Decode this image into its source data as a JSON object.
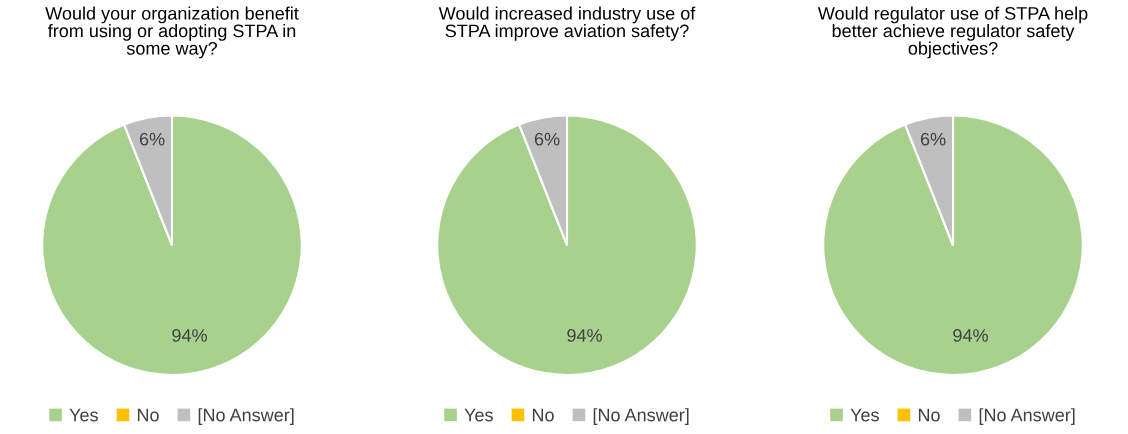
{
  "chart_data": [
    {
      "type": "pie",
      "title": "Would your organization benefit\nfrom using or adopting STPA in\nsome way?",
      "categories": [
        "Yes",
        "No",
        "[No Answer]"
      ],
      "values": [
        94,
        0,
        6
      ],
      "colors": [
        "#a9d18e",
        "#ffc000",
        "#bfbfbf"
      ],
      "value_labels": [
        "94%",
        null,
        "6%"
      ],
      "legend": "bottom"
    },
    {
      "type": "pie",
      "title": "Would increased industry use of\nSTPA improve aviation safety?",
      "categories": [
        "Yes",
        "No",
        "[No Answer]"
      ],
      "values": [
        94,
        0,
        6
      ],
      "colors": [
        "#a9d18e",
        "#ffc000",
        "#bfbfbf"
      ],
      "value_labels": [
        "94%",
        null,
        "6%"
      ],
      "legend": "bottom"
    },
    {
      "type": "pie",
      "title": "Would regulator use of STPA help\nbetter achieve regulator safety\nobjectives?",
      "categories": [
        "Yes",
        "No",
        "[No Answer]"
      ],
      "values": [
        94,
        0,
        6
      ],
      "colors": [
        "#a9d18e",
        "#ffc000",
        "#bfbfbf"
      ],
      "value_labels": [
        "94%",
        null,
        "6%"
      ],
      "legend": "bottom"
    }
  ]
}
